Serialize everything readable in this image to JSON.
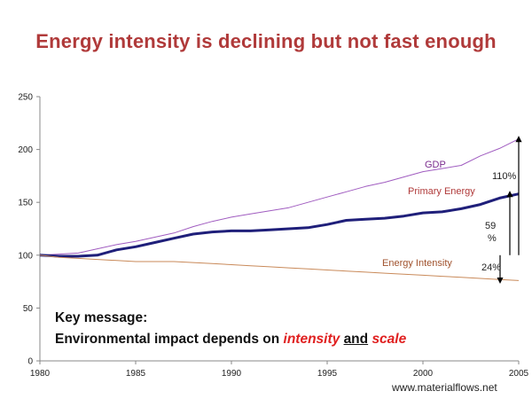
{
  "slide": {
    "title": "Energy intensity is declining but not fast enough",
    "key_message_heading": "Key message:",
    "key_message_prefix": "Environmental impact depends on ",
    "key_message_intensity": "intensity",
    "key_message_and": "and",
    "key_message_scale": "scale",
    "source": "www.materialflows.net"
  },
  "chart_data": {
    "type": "line",
    "title": "",
    "xlabel": "",
    "ylabel": "",
    "xlim": [
      1980,
      2005
    ],
    "ylim": [
      0,
      250
    ],
    "x_ticks": [
      1980,
      1985,
      1990,
      1995,
      2000,
      2005
    ],
    "y_ticks": [
      0,
      50,
      100,
      150,
      200,
      250
    ],
    "grid": false,
    "x": [
      1980,
      1981,
      1982,
      1983,
      1984,
      1985,
      1986,
      1987,
      1988,
      1989,
      1990,
      1991,
      1992,
      1993,
      1994,
      1995,
      1996,
      1997,
      1998,
      1999,
      2000,
      2001,
      2002,
      2003,
      2004,
      2005
    ],
    "series": [
      {
        "name": "GDP",
        "color": "#a05cc0",
        "width": 1,
        "values": [
          100,
          101,
          102,
          106,
          110,
          113,
          117,
          121,
          127,
          132,
          136,
          139,
          142,
          145,
          150,
          155,
          160,
          165,
          169,
          174,
          179,
          182,
          185,
          194,
          201,
          210
        ]
      },
      {
        "name": "Primary Energy",
        "color": "#1f1f7a",
        "width": 3,
        "values": [
          100,
          99,
          99,
          100,
          105,
          108,
          112,
          116,
          120,
          122,
          123,
          123,
          124,
          125,
          126,
          129,
          133,
          134,
          135,
          137,
          140,
          141,
          144,
          148,
          154,
          158
        ]
      },
      {
        "name": "Energy Intensity",
        "color": "#c98a5a",
        "width": 1,
        "values": [
          100,
          98,
          97,
          96,
          95,
          94,
          94,
          94,
          93,
          92,
          91,
          90,
          89,
          88,
          87,
          86,
          85,
          84,
          83,
          82,
          81,
          80,
          79,
          78,
          77,
          76
        ]
      }
    ],
    "annotations": [
      {
        "label": "110%",
        "from": 100,
        "to": 210
      },
      {
        "label": "59 %",
        "from": 100,
        "to": 158
      },
      {
        "label": "24%",
        "from": 100,
        "to": 76
      }
    ]
  }
}
